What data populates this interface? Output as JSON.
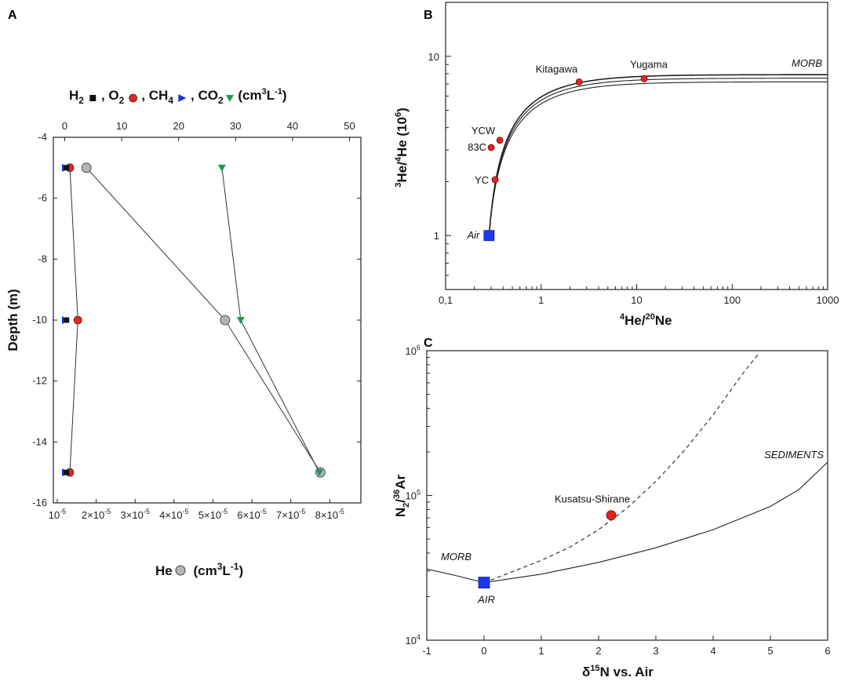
{
  "chart_data": [
    {
      "panel": "A",
      "type": "line",
      "top_axis_label": {
        "parts": [
          "H",
          "2",
          ", O",
          "2",
          ", CH",
          "4",
          ", CO",
          "2",
          " (cm",
          "3",
          "L",
          "-1",
          ")"
        ]
      },
      "top_axis_markers": [
        "H2-square",
        "O2-circle-red",
        "CH4-triangle-right-blue",
        "CO2-triangle-down-green"
      ],
      "bottom_axis_label": {
        "parts": [
          "He",
          " (cm",
          "3",
          "L",
          "-1",
          ")"
        ]
      },
      "ylabel": "Depth (m)",
      "ylim": [
        -16,
        -4
      ],
      "yticks": [
        -4,
        -6,
        -8,
        -10,
        -12,
        -14,
        -16
      ],
      "yticklabels": [
        "-4",
        "-6",
        "-8",
        "-10",
        "-12",
        "-14",
        "-16"
      ],
      "top_xlim": [
        -2,
        52
      ],
      "top_xticks": [
        0,
        10,
        20,
        30,
        40,
        50
      ],
      "top_xticklabels": [
        "0",
        "10",
        "20",
        "30",
        "40",
        "50"
      ],
      "bottom_xlim": [
        9e-06,
        8.8e-05
      ],
      "bottom_xticks": [
        1e-05,
        2e-05,
        3e-05,
        4e-05,
        5e-05,
        6e-05,
        7e-05,
        8e-05
      ],
      "bottom_xticklabels": [
        {
          "base": "10",
          "exp": "-5"
        },
        {
          "base": "2×10",
          "exp": "-5"
        },
        {
          "base": "3×10",
          "exp": "-5"
        },
        {
          "base": "4×10",
          "exp": "-5"
        },
        {
          "base": "5×10",
          "exp": "-5"
        },
        {
          "base": "6×10",
          "exp": "-5"
        },
        {
          "base": "7×10",
          "exp": "-5"
        },
        {
          "base": "8×10",
          "exp": "-5"
        }
      ],
      "series": [
        {
          "name": "He",
          "axis": "bottom",
          "marker": "circle",
          "color": "#b4b4b4",
          "depth": [
            -5,
            -10,
            -15
          ],
          "values": [
            1.75e-05,
            5.31e-05,
            7.76e-05
          ]
        },
        {
          "name": "H2",
          "axis": "top",
          "marker": "square",
          "color": "#111111",
          "depth": [
            -5,
            -10,
            -15
          ],
          "values": [
            0.3,
            0.3,
            0.3
          ]
        },
        {
          "name": "O2",
          "axis": "top",
          "marker": "circle",
          "color": "#e8221c",
          "depth": [
            -5,
            -10,
            -15
          ],
          "values": [
            0.9,
            2.3,
            0.9
          ]
        },
        {
          "name": "CH4",
          "axis": "top",
          "marker": "triangle-right",
          "color": "#1f37d6",
          "depth": [
            -5,
            -10,
            -15
          ],
          "values": [
            0.2,
            0.2,
            0.2
          ]
        },
        {
          "name": "CO2",
          "axis": "top",
          "marker": "triangle-down",
          "color": "#1a9a55",
          "depth": [
            -5,
            -10,
            -15
          ],
          "values": [
            27.6,
            30.9,
            44.7
          ]
        }
      ]
    },
    {
      "panel": "B",
      "type": "scatter",
      "xlabel": {
        "parts": [
          "4",
          "He/",
          "20",
          "Ne"
        ]
      },
      "ylabel": {
        "parts": [
          "3",
          "He/",
          "4",
          "He (10",
          "6",
          ")"
        ]
      },
      "xscale": "log",
      "yscale": "log",
      "xlim": [
        0.1,
        1000
      ],
      "ylim": [
        0.5,
        20
      ],
      "xticks": [
        0.1,
        1,
        10,
        100,
        1000
      ],
      "xticklabels": [
        "0,1",
        "1",
        "10",
        "100",
        "1000"
      ],
      "yticks": [
        1,
        10
      ],
      "yticklabels": [
        "1",
        "10"
      ],
      "curves": [
        {
          "name": "MORB mixing (upper)",
          "end_ratio": 7.9
        },
        {
          "name": "MORB mixing (middle)",
          "end_ratio": 7.55
        },
        {
          "name": "MORB mixing (lower)",
          "end_ratio": 7.2
        }
      ],
      "curve_label": "MORB",
      "air_point": {
        "label": "Air",
        "x": 0.285,
        "y": 1.0
      },
      "points": [
        {
          "label": "Kitagawa",
          "x": 2.5,
          "y": 7.2
        },
        {
          "label": "Yugama",
          "x": 12,
          "y": 7.5
        },
        {
          "label": "YCW",
          "x": 0.37,
          "y": 3.4
        },
        {
          "label": "83C",
          "x": 0.3,
          "y": 3.1
        },
        {
          "label": "YC",
          "x": 0.33,
          "y": 2.05
        }
      ]
    },
    {
      "panel": "C",
      "type": "line",
      "xlabel": {
        "parts": [
          "δ",
          "15",
          "N vs. Air"
        ]
      },
      "ylabel": {
        "parts": [
          "N",
          "2",
          "/",
          "36",
          "Ar"
        ]
      },
      "yscale": "log",
      "xlim": [
        -1,
        6
      ],
      "ylim": [
        10000,
        1000000
      ],
      "xticks": [
        -1,
        0,
        1,
        2,
        3,
        4,
        5,
        6
      ],
      "xticklabels": [
        "-1",
        "0",
        "1",
        "2",
        "3",
        "4",
        "5",
        "6"
      ],
      "yticks": [
        10000,
        100000,
        1000000
      ],
      "yticklabels": [
        {
          "base": "10",
          "exp": "4"
        },
        {
          "base": "10",
          "exp": "5"
        },
        {
          "base": "10",
          "exp": "6"
        }
      ],
      "solid_curve": {
        "x": [
          -1,
          -0.5,
          0,
          1,
          2,
          3,
          4,
          5,
          5.5,
          6
        ],
        "y": [
          31000,
          28000,
          25000,
          28600,
          34500,
          43500,
          58000,
          84000,
          110000,
          170000
        ]
      },
      "dashed_curve": {
        "x": [
          0,
          0.5,
          1,
          1.5,
          2,
          2.5,
          3,
          3.5,
          4,
          4.5,
          4.8
        ],
        "y": [
          25000,
          29800,
          35600,
          44000,
          58000,
          82000,
          125000,
          205000,
          360000,
          680000,
          960000
        ]
      },
      "labels": {
        "morb": "MORB",
        "sediments": "SEDIMENTS"
      },
      "air_point": {
        "label": "AIR",
        "x": 0,
        "y": 25000
      },
      "points": [
        {
          "label": "Kusatsu-Shirane",
          "x": 2.22,
          "y": 73000
        }
      ]
    }
  ],
  "panel_letters": [
    "A",
    "B",
    "C"
  ],
  "colors": {
    "gray": "#b4b4b4",
    "red": "#e8221c",
    "blue": "#1f37d6",
    "green": "#1a9a55",
    "air_blue": "#1f37f0",
    "black": "#111111"
  }
}
